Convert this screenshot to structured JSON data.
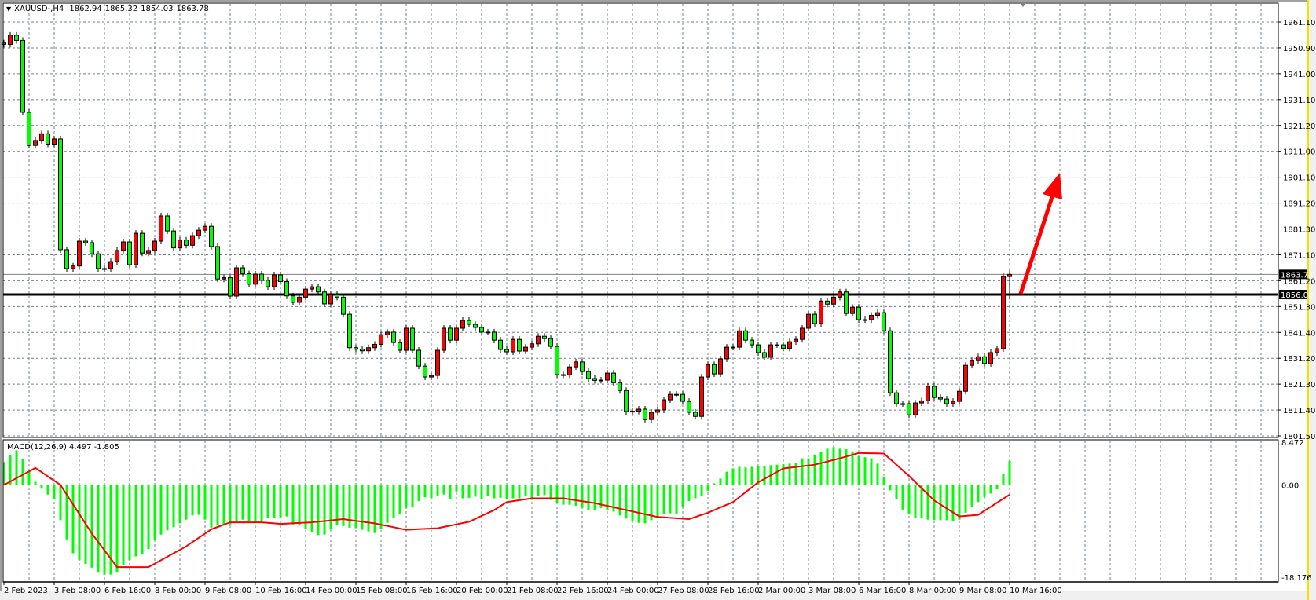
{
  "header": {
    "symbol": "XAUUSD-,H4",
    "open": "1862.94",
    "high": "1865.32",
    "low": "1854.03",
    "close": "1863.78"
  },
  "macd_label": {
    "name": "MACD(12,26,9)",
    "main": "4.497",
    "signal": "-1.805"
  },
  "colors": {
    "bull_candle": "#ff0000",
    "bear_candle": "#00ff00",
    "histogram": "#00ff00",
    "signal_line": "#ff0000",
    "grid": "#708090",
    "arrow": "#ff0000",
    "level_line": "#000000"
  },
  "chart_data": [
    {
      "type": "candlestick",
      "symbol": "XAUUSD-",
      "timeframe": "H4",
      "ylim": [
        1801.5,
        1961.1
      ],
      "grid": true,
      "price_ticks": [
        "1961.10",
        "1950.90",
        "1941.00",
        "1931.10",
        "1921.20",
        "1911.00",
        "1901.10",
        "1891.20",
        "1881.30",
        "1871.10",
        "1861.20",
        "1851.30",
        "1841.40",
        "1831.20",
        "1821.30",
        "1811.40",
        "1801.50"
      ],
      "time_ticks": [
        "2 Feb 2023",
        "3 Feb 08:00",
        "6 Feb 16:00",
        "8 Feb 00:00",
        "9 Feb 08:00",
        "10 Feb 16:00",
        "14 Feb 00:00",
        "15 Feb 08:00",
        "16 Feb 16:00",
        "20 Feb 00:00",
        "21 Feb 08:00",
        "22 Feb 16:00",
        "24 Feb 00:00",
        "27 Feb 08:00",
        "28 Feb 16:00",
        "2 Mar 00:00",
        "3 Mar 08:00",
        "6 Mar 16:00",
        "8 Mar 00:00",
        "9 Mar 08:00",
        "10 Mar 16:00"
      ],
      "first_open": 1953,
      "closes": [
        1952.5,
        1956,
        1954,
        1926.3,
        1913.5,
        1915.4,
        1918,
        1914,
        1916,
        1873.3,
        1866,
        1867,
        1876.6,
        1876,
        1871.7,
        1866,
        1866,
        1868.7,
        1873,
        1876.3,
        1867.5,
        1879.6,
        1872,
        1873,
        1876.6,
        1886.3,
        1880.5,
        1874,
        1877,
        1875,
        1878.7,
        1880.8,
        1882.3,
        1874.5,
        1862,
        1862.5,
        1855.4,
        1866.3,
        1864,
        1860,
        1863.9,
        1861.5,
        1859,
        1863.6,
        1861,
        1855.5,
        1853,
        1855,
        1858.1,
        1859,
        1857,
        1852.4,
        1856,
        1855,
        1848.4,
        1835.5,
        1834.9,
        1834.3,
        1835.5,
        1836.8,
        1840.5,
        1841.5,
        1837.5,
        1834.5,
        1843,
        1834.5,
        1828.4,
        1824.2,
        1824.8,
        1834.5,
        1843,
        1838.4,
        1843,
        1846,
        1844.5,
        1843.3,
        1841.5,
        1841.5,
        1838.4,
        1834.8,
        1833.9,
        1838.7,
        1834.2,
        1835.7,
        1837,
        1839.9,
        1839,
        1836,
        1825.1,
        1825,
        1828.1,
        1830,
        1826.3,
        1823.6,
        1822.9,
        1823,
        1825.7,
        1822,
        1819,
        1810.9,
        1811,
        1811.8,
        1807.8,
        1810.6,
        1811.5,
        1815.4,
        1817.5,
        1817.5,
        1814.8,
        1810.6,
        1809,
        1824.2,
        1829,
        1825.4,
        1831.2,
        1835.7,
        1835.7,
        1842,
        1838.4,
        1836.6,
        1833.6,
        1831.8,
        1836.6,
        1836.6,
        1835.3,
        1837.8,
        1838.7,
        1843,
        1848.4,
        1844.8,
        1853.5,
        1852.3,
        1855,
        1857,
        1848.7,
        1851.1,
        1846.3,
        1846.3,
        1848,
        1849,
        1842,
        1818.1,
        1813.9,
        1813.9,
        1809.6,
        1814.2,
        1815,
        1820.6,
        1816.3,
        1815.7,
        1813.9,
        1814.8,
        1818.7,
        1828.7,
        1830.5,
        1832,
        1829.4,
        1833.6,
        1835.1,
        1862.94,
        1863.78
      ],
      "last_bar": {
        "open": 1862.94,
        "high": 1865.32,
        "low": 1854.03,
        "close": 1863.78
      },
      "horizontal_level": {
        "value": 1856.0,
        "label": "1856.00"
      },
      "bid_line": {
        "value": 1863.78,
        "label": "1863.78"
      }
    },
    {
      "type": "macd",
      "title": "MACD(12,26,9)",
      "ylim": [
        -18.176,
        8.472
      ],
      "y_ticks": [
        "8.472",
        "0.00",
        "-18.176"
      ],
      "histogram": [
        4.3,
        5.6,
        6.5,
        4.8,
        2.5,
        0.6,
        -0.7,
        -1.8,
        -2.7,
        -6.6,
        -10.2,
        -12.8,
        -14.1,
        -14.8,
        -15.5,
        -16.3,
        -16.8,
        -16.8,
        -16.3,
        -15.0,
        -14.1,
        -13.4,
        -12.9,
        -12.0,
        -10.3,
        -9.3,
        -8.5,
        -7.9,
        -7.2,
        -6.5,
        -5.7,
        -5.6,
        -6.5,
        -8.0,
        -7.6,
        -7.6,
        -7.4,
        -6.7,
        -6.5,
        -6.8,
        -7.0,
        -6.7,
        -6.1,
        -6.1,
        -6.1,
        -5.9,
        -7.4,
        -7.6,
        -8.2,
        -8.9,
        -9.4,
        -9.3,
        -8.4,
        -7.5,
        -7.7,
        -8.0,
        -8.1,
        -8.4,
        -8.7,
        -9.0,
        -8.2,
        -7.1,
        -6.2,
        -5.5,
        -4.3,
        -4.1,
        -3.0,
        -2.3,
        -2.5,
        -2.1,
        -1.8,
        -2.6,
        -1.2,
        -2.5,
        -2.4,
        -2.2,
        -2.6,
        -2.0,
        -2.5,
        -2.4,
        -2.6,
        -2.5,
        -2.5,
        -2.0,
        -2.8,
        -2.0,
        -1.9,
        -2.8,
        -3.4,
        -3.7,
        -3.7,
        -3.9,
        -4.3,
        -4.7,
        -4.7,
        -4.3,
        -4.7,
        -5.0,
        -5.7,
        -6.3,
        -6.8,
        -7.1,
        -7.2,
        -6.6,
        -5.9,
        -5.5,
        -5.3,
        -5.4,
        -4.2,
        -3.0,
        -2.5,
        -2.0,
        -1.1,
        0.3,
        1.2,
        2.5,
        3.1,
        3.4,
        3.3,
        3.4,
        3.5,
        3.6,
        3.7,
        3.8,
        3.9,
        4.0,
        4.2,
        5.0,
        5.0,
        5.7,
        6.2,
        6.8,
        7.1,
        6.8,
        6.7,
        6.3,
        5.4,
        5.2,
        5.0,
        4.0,
        1.5,
        -1.0,
        -2.7,
        -4.6,
        -5.4,
        -6.1,
        -6.1,
        -6.5,
        -6.6,
        -6.6,
        -6.6,
        -6.7,
        -6.5,
        -5.2,
        -4.1,
        -3.2,
        -2.3,
        -1.6,
        -0.8,
        2.1,
        4.5
      ],
      "signal_points": [
        [
          1,
          0
        ],
        [
          6,
          3.2
        ],
        [
          10,
          0
        ],
        [
          15,
          -9.1
        ],
        [
          19,
          -15.4
        ],
        [
          24,
          -15.4
        ],
        [
          30,
          -11.5
        ],
        [
          34,
          -8.3
        ],
        [
          37,
          -7.0
        ],
        [
          42,
          -7.0
        ],
        [
          45,
          -7.3
        ],
        [
          50,
          -7.0
        ],
        [
          55,
          -6.4
        ],
        [
          60,
          -7.2
        ],
        [
          65,
          -8.4
        ],
        [
          70,
          -8.1
        ],
        [
          75,
          -6.9
        ],
        [
          79,
          -4.7
        ],
        [
          81,
          -3.2
        ],
        [
          85,
          -2.5
        ],
        [
          90,
          -2.5
        ],
        [
          95,
          -3.4
        ],
        [
          100,
          -4.7
        ],
        [
          105,
          -6.0
        ],
        [
          110,
          -6.4
        ],
        [
          113,
          -5.2
        ],
        [
          117,
          -3.2
        ],
        [
          121,
          0.5
        ],
        [
          125,
          3.1
        ],
        [
          130,
          3.8
        ],
        [
          134,
          5.0
        ],
        [
          137,
          6.0
        ],
        [
          141,
          5.9
        ],
        [
          145,
          1.7
        ],
        [
          149,
          -2.9
        ],
        [
          153,
          -5.9
        ],
        [
          156,
          -5.6
        ],
        [
          161,
          -1.805
        ]
      ]
    }
  ]
}
